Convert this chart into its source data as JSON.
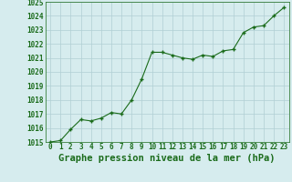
{
  "x": [
    0,
    1,
    2,
    3,
    4,
    5,
    6,
    7,
    8,
    9,
    10,
    11,
    12,
    13,
    14,
    15,
    16,
    17,
    18,
    19,
    20,
    21,
    22,
    23
  ],
  "y": [
    1015.0,
    1015.1,
    1015.9,
    1016.6,
    1016.5,
    1016.7,
    1017.1,
    1017.0,
    1018.0,
    1019.5,
    1021.4,
    1021.4,
    1021.2,
    1021.0,
    1020.9,
    1021.2,
    1021.1,
    1021.5,
    1021.6,
    1022.8,
    1023.2,
    1023.3,
    1024.0,
    1024.6
  ],
  "line_color": "#1a6b1a",
  "marker_color": "#1a6b1a",
  "bg_color": "#d6ecee",
  "grid_color": "#b0cfd4",
  "title": "Graphe pression niveau de la mer (hPa)",
  "title_color": "#1a6b1a",
  "ylim": [
    1015,
    1025
  ],
  "yticks": [
    1015,
    1016,
    1017,
    1018,
    1019,
    1020,
    1021,
    1022,
    1023,
    1024,
    1025
  ],
  "xticks": [
    0,
    1,
    2,
    3,
    4,
    5,
    6,
    7,
    8,
    9,
    10,
    11,
    12,
    13,
    14,
    15,
    16,
    17,
    18,
    19,
    20,
    21,
    22,
    23
  ],
  "xtick_labels": [
    "0",
    "1",
    "2",
    "3",
    "4",
    "5",
    "6",
    "7",
    "8",
    "9",
    "10",
    "11",
    "12",
    "13",
    "14",
    "15",
    "16",
    "17",
    "18",
    "19",
    "20",
    "21",
    "22",
    "23"
  ],
  "axis_color": "#1a6b1a",
  "tick_color": "#1a6b1a",
  "font_size_title": 7.5,
  "font_size_ticks": 5.5
}
